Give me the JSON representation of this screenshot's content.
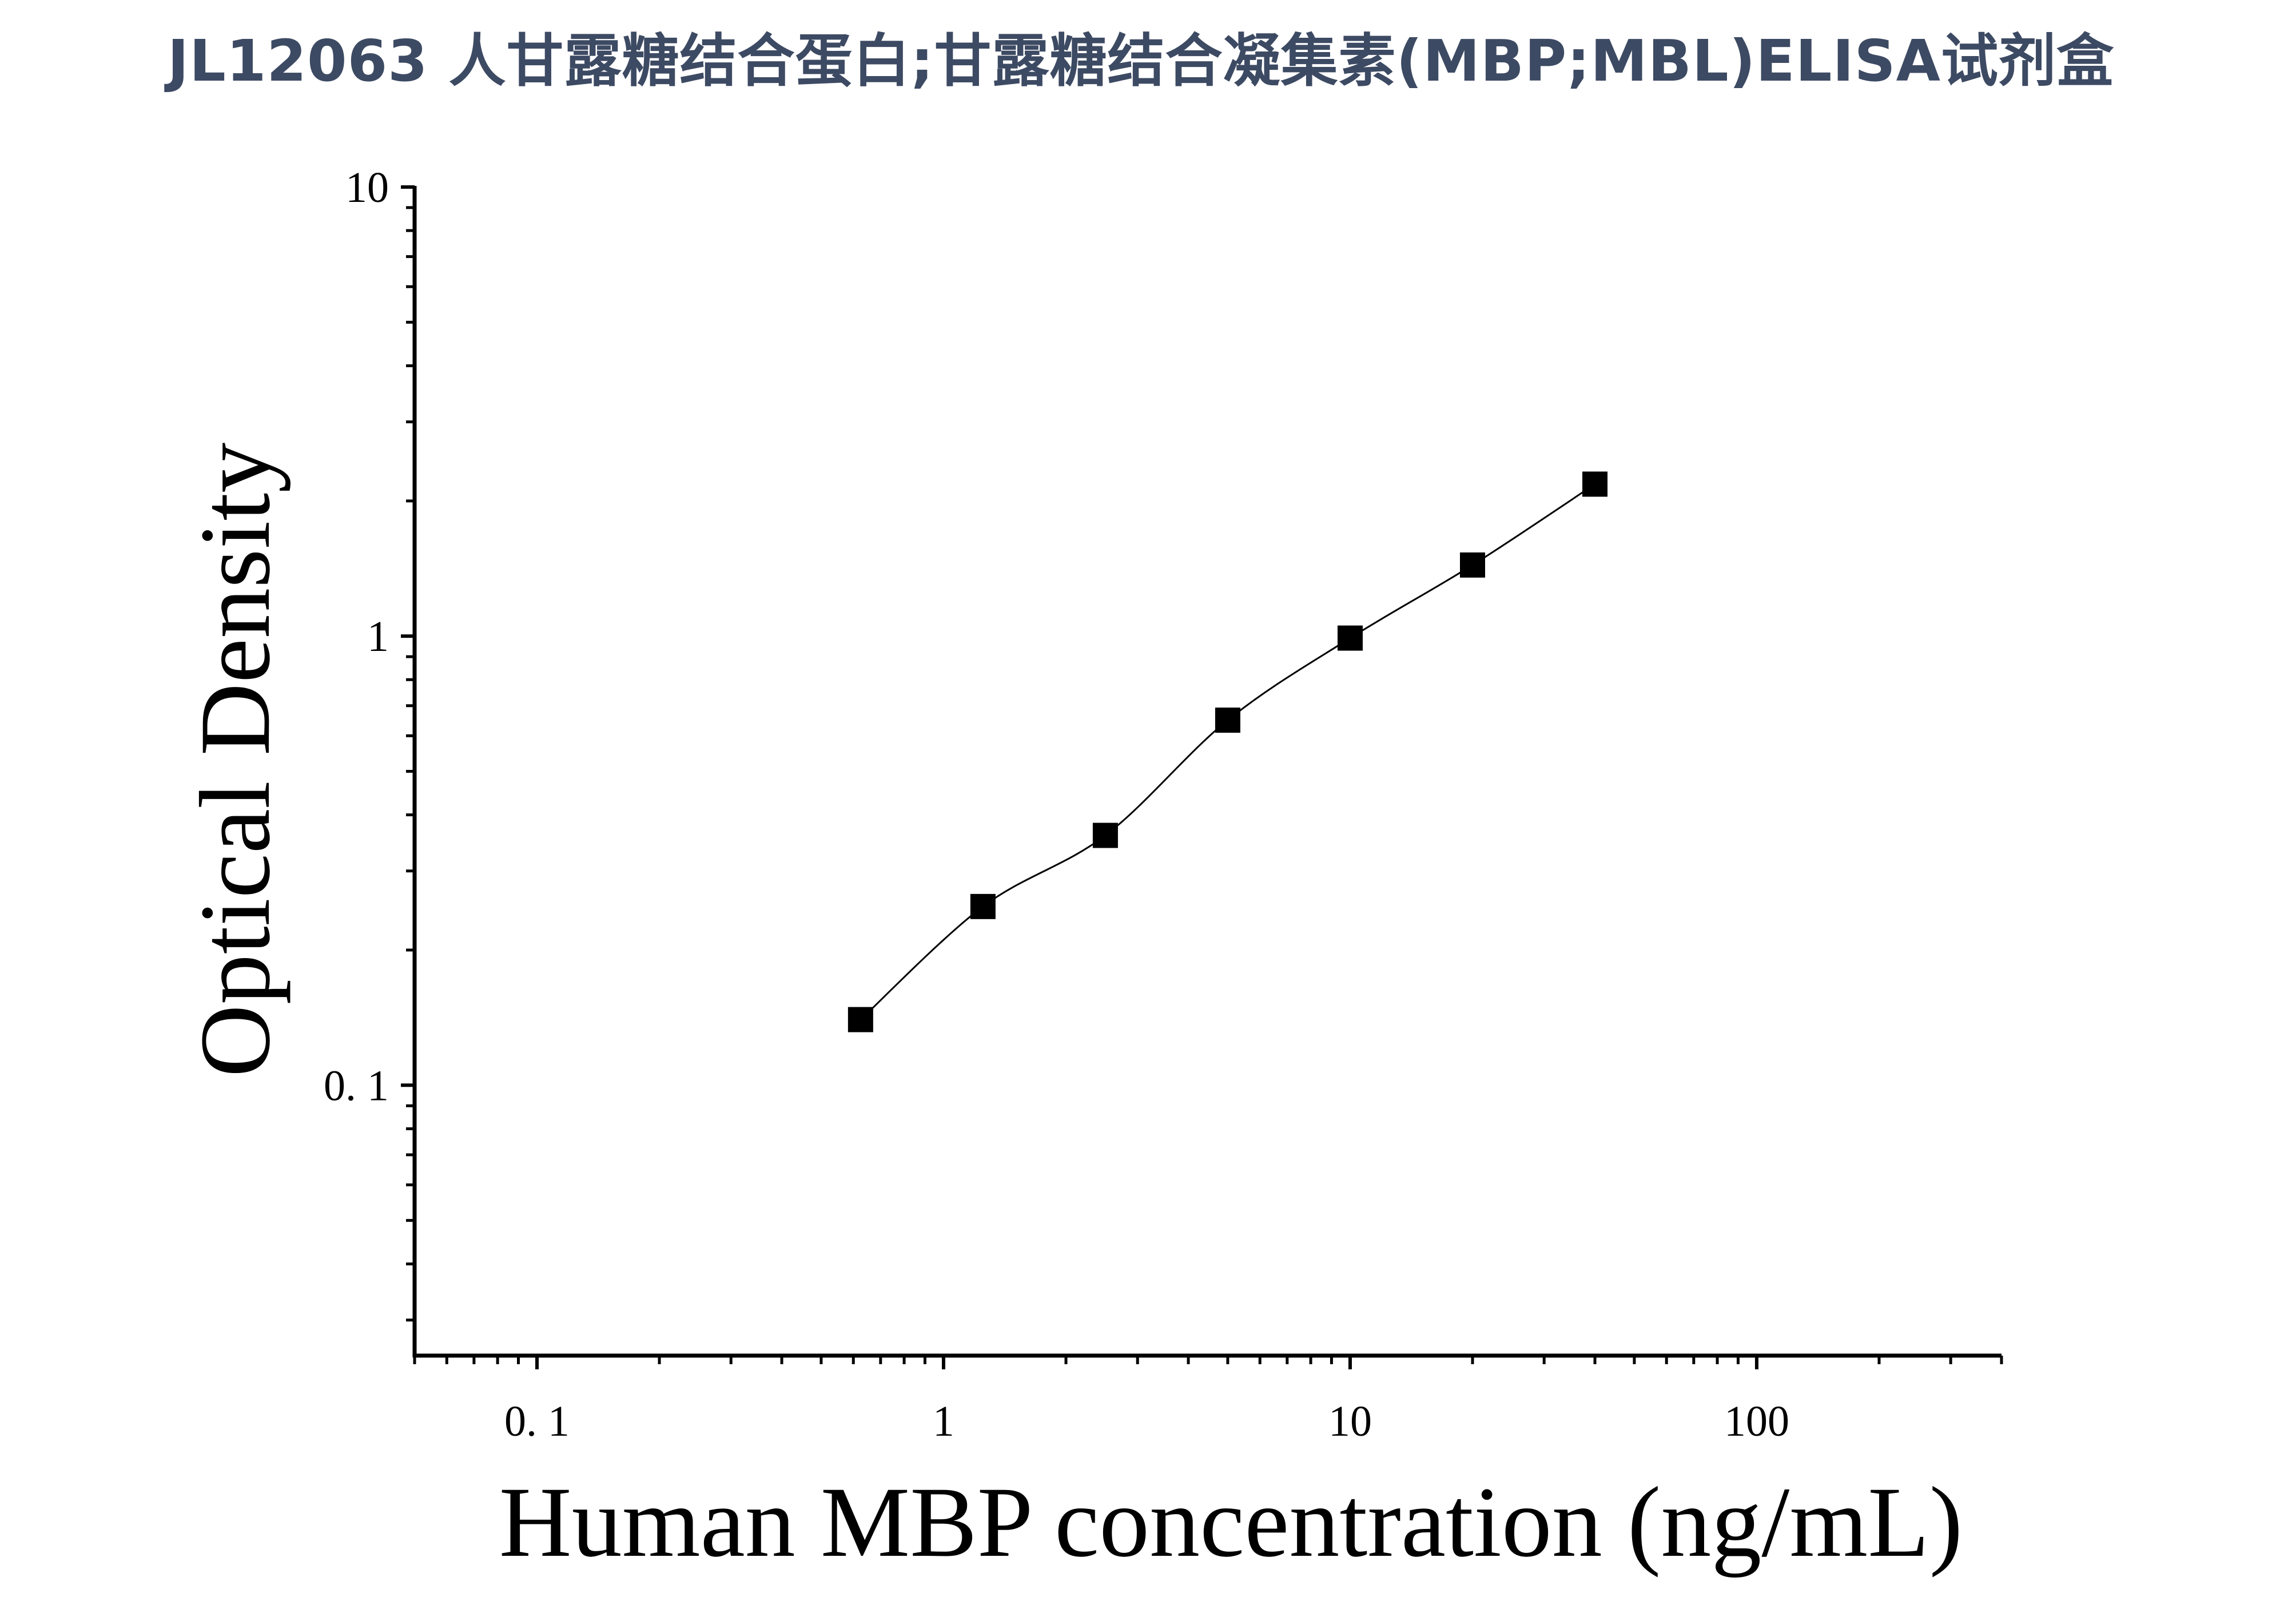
{
  "title": "JL12063 人甘露糖结合蛋白;甘露糖结合凝集素(MBP;MBL)ELISA试剂盒",
  "chart_data": {
    "type": "scatter",
    "xlabel": "Human MBP concentration (ng/mL)",
    "ylabel": "Optical Density",
    "xscale": "log",
    "yscale": "log",
    "xlim": [
      0.05,
      400
    ],
    "ylim": [
      0.025,
      10
    ],
    "x_ticks": [
      0.1,
      1,
      10,
      100
    ],
    "x_tick_labels": [
      "0. 1",
      "1",
      "10",
      "100"
    ],
    "y_ticks": [
      0.1,
      1,
      10
    ],
    "y_tick_labels": [
      "0. 1",
      "1",
      "10"
    ],
    "grid": false,
    "series": [
      {
        "x": [
          0.625,
          1.25,
          2.5,
          5,
          10,
          20,
          40
        ],
        "y": [
          0.14,
          0.25,
          0.36,
          0.65,
          0.99,
          1.44,
          2.18
        ],
        "marker": "square",
        "color": "#000000",
        "fit_curve": true
      }
    ]
  }
}
